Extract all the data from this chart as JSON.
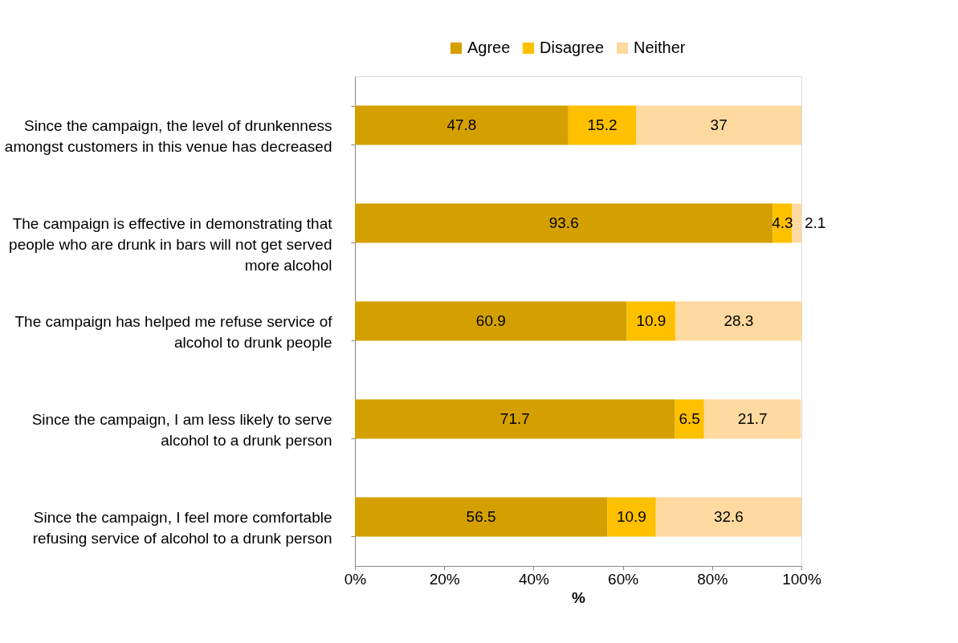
{
  "chart_data": {
    "type": "bar",
    "orientation": "horizontal",
    "stacked": true,
    "categories": [
      "Since the campaign, the level of drunkenness amongst customers in this venue has decreased",
      "The campaign is effective in demonstrating that people who are drunk in bars will not get served more alcohol",
      "The campaign has helped me refuse service of alcohol to drunk people",
      "Since the campaign, I am less likely to serve alcohol to a drunk person",
      "Since the campaign, I feel more comfortable refusing service of alcohol to a drunk person"
    ],
    "series": [
      {
        "name": "Agree",
        "color": "#d4a000",
        "values": [
          47.8,
          93.6,
          60.9,
          71.7,
          56.5
        ]
      },
      {
        "name": "Disagree",
        "color": "#ffc000",
        "values": [
          15.2,
          4.3,
          10.9,
          6.5,
          10.9
        ]
      },
      {
        "name": "Neither",
        "color": "#fed9a0",
        "values": [
          37,
          2.1,
          28.3,
          21.7,
          32.6
        ]
      }
    ],
    "xlim": [
      0,
      100
    ],
    "xticks": [
      {
        "value": 0,
        "label": "0%"
      },
      {
        "value": 20,
        "label": "20%"
      },
      {
        "value": 40,
        "label": "40%"
      },
      {
        "value": 60,
        "label": "60%"
      },
      {
        "value": 80,
        "label": "80%"
      },
      {
        "value": 100,
        "label": "100%"
      }
    ],
    "xlabel": "%",
    "data_labels": true,
    "legend": "top right",
    "grid": false
  }
}
